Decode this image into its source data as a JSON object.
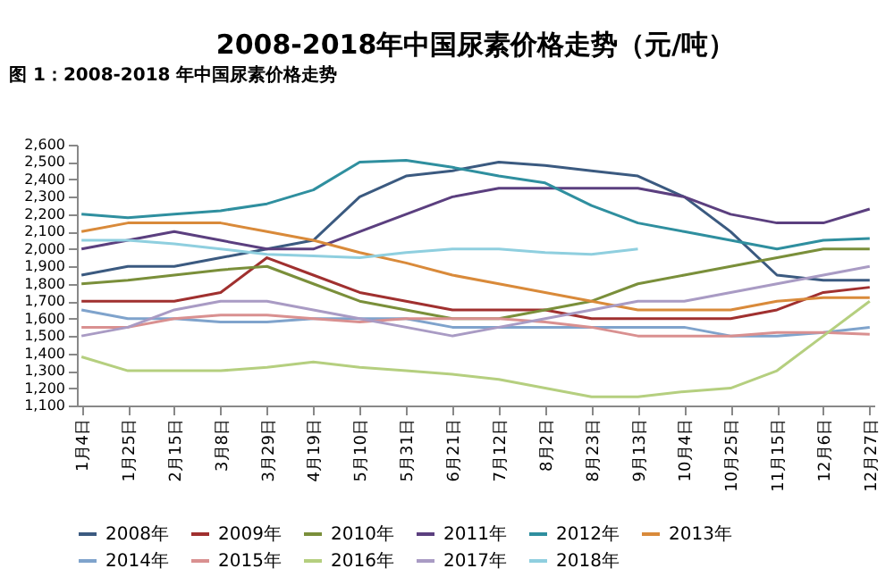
{
  "chart_data": {
    "type": "line",
    "title": "2008-2018年中国尿素价格走势（元/吨）",
    "annotations": [
      "图 1：2008-2018 年中国尿素价格走势"
    ],
    "categories": [
      "1月4日",
      "1月25日",
      "2月15日",
      "3月8日",
      "3月29日",
      "4月19日",
      "5月10日",
      "5月31日",
      "6月21日",
      "7月12日",
      "8月2日",
      "8月23日",
      "9月13日",
      "10月4日",
      "10月25日",
      "11月15日",
      "12月6日",
      "12月27日"
    ],
    "series": [
      {
        "name": "2008年",
        "color": "#3b5a80",
        "values": [
          1850,
          1900,
          1900,
          1950,
          2000,
          2050,
          2300,
          2420,
          2450,
          2500,
          2480,
          2450,
          2420,
          2300,
          2100,
          1850,
          1820,
          1820
        ]
      },
      {
        "name": "2009年",
        "color": "#a0302f",
        "values": [
          1700,
          1700,
          1700,
          1750,
          1950,
          1850,
          1750,
          1700,
          1650,
          1650,
          1650,
          1600,
          1600,
          1600,
          1600,
          1650,
          1750,
          1780
        ]
      },
      {
        "name": "2010年",
        "color": "#7a8f3a",
        "values": [
          1800,
          1820,
          1850,
          1880,
          1900,
          1800,
          1700,
          1650,
          1600,
          1600,
          1650,
          1700,
          1800,
          1850,
          1900,
          1950,
          2000,
          2000
        ]
      },
      {
        "name": "2011年",
        "color": "#5b3f7f",
        "values": [
          2000,
          2050,
          2100,
          2050,
          2000,
          2000,
          2100,
          2200,
          2300,
          2350,
          2350,
          2350,
          2350,
          2300,
          2200,
          2150,
          2150,
          2230
        ]
      },
      {
        "name": "2012年",
        "color": "#2f8f9f",
        "values": [
          2200,
          2180,
          2200,
          2220,
          2260,
          2340,
          2500,
          2510,
          2470,
          2420,
          2380,
          2250,
          2150,
          2100,
          2050,
          2000,
          2050,
          2060
        ]
      },
      {
        "name": "2013年",
        "color": "#d98a3a",
        "values": [
          2100,
          2150,
          2150,
          2150,
          2100,
          2050,
          1980,
          1920,
          1850,
          1800,
          1750,
          1700,
          1650,
          1650,
          1650,
          1700,
          1720,
          1720
        ]
      },
      {
        "name": "2014年",
        "color": "#7fa3cc",
        "values": [
          1650,
          1600,
          1600,
          1580,
          1580,
          1600,
          1600,
          1600,
          1550,
          1550,
          1550,
          1550,
          1550,
          1550,
          1500,
          1500,
          1520,
          1550
        ]
      },
      {
        "name": "2015年",
        "color": "#d99090",
        "values": [
          1550,
          1550,
          1600,
          1620,
          1620,
          1600,
          1580,
          1600,
          1600,
          1600,
          1580,
          1550,
          1500,
          1500,
          1500,
          1520,
          1520,
          1510
        ]
      },
      {
        "name": "2016年",
        "color": "#b5cf7f",
        "values": [
          1380,
          1300,
          1300,
          1300,
          1320,
          1350,
          1320,
          1300,
          1280,
          1250,
          1200,
          1150,
          1150,
          1180,
          1200,
          1300,
          1500,
          1700
        ]
      },
      {
        "name": "2017年",
        "color": "#a99bc4",
        "values": [
          1500,
          1550,
          1650,
          1700,
          1700,
          1650,
          1600,
          1550,
          1500,
          1550,
          1600,
          1650,
          1700,
          1700,
          1750,
          1800,
          1850,
          1900
        ]
      },
      {
        "name": "2018年",
        "color": "#8fcfdf",
        "values": [
          2050,
          2050,
          2030,
          2000,
          1970,
          1960,
          1950,
          1980,
          2000,
          2000,
          1980,
          1970,
          2000,
          null,
          null,
          null,
          null,
          null
        ]
      }
    ],
    "ylim": [
      1100,
      2600
    ],
    "yticks": [
      {
        "value": 1100,
        "label": "1,100"
      },
      {
        "value": 1200,
        "label": "1,200"
      },
      {
        "value": 1300,
        "label": "1,300"
      },
      {
        "value": 1400,
        "label": "1,400"
      },
      {
        "value": 1500,
        "label": "1,500"
      },
      {
        "value": 1600,
        "label": "1,600"
      },
      {
        "value": 1700,
        "label": "1,700"
      },
      {
        "value": 1800,
        "label": "1,800"
      },
      {
        "value": 1900,
        "label": "1,900"
      },
      {
        "value": 2000,
        "label": "2,000"
      },
      {
        "value": 2100,
        "label": "2,100"
      },
      {
        "value": 2200,
        "label": "2,200"
      },
      {
        "value": 2300,
        "label": "2,300"
      },
      {
        "value": 2400,
        "label": "2,400"
      },
      {
        "value": 2500,
        "label": "2,500"
      },
      {
        "value": 2600,
        "label": "2,600"
      }
    ],
    "grid": false,
    "legend": "bottom",
    "marker": "none",
    "line_style": "solid"
  }
}
